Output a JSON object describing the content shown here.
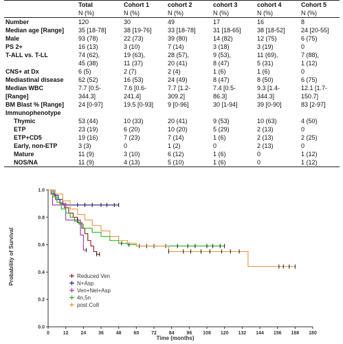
{
  "table": {
    "columns": [
      "",
      "Total",
      "Cohort 1",
      "cohort 2",
      "cohort 3",
      "cohort 4",
      "Cohort 5"
    ],
    "units": [
      "",
      "N (%)",
      "N (%)",
      "N (%)",
      "N (%)",
      "N (%)",
      "N (%)"
    ],
    "rows": [
      {
        "label": "Number",
        "indent": false,
        "cells": [
          "120",
          "30",
          "49",
          "17",
          "16",
          "8"
        ]
      },
      {
        "label": "Median age [Range]",
        "indent": false,
        "cells": [
          "35 [18-78]",
          "38 [19-76]",
          "33 [18-78]",
          "31 [18-65]",
          "38 [18-52]",
          "24 [20-55]"
        ]
      },
      {
        "label": "Male",
        "indent": false,
        "cells": [
          "93 (78)",
          "22 (73)",
          "39 (80)",
          "14 (82)",
          "12 (75)",
          "6 (75)"
        ]
      },
      {
        "label": "PS 2+",
        "indent": false,
        "cells": [
          "16 (13)",
          "3 (10)",
          "7 (14)",
          "3 (18)",
          "3 (19)",
          "0"
        ]
      },
      {
        "label": "T-ALL vs. T-LL",
        "indent": false,
        "cells": [
          "74 (62),",
          "19 (63),",
          "28 (57),",
          "9 (53),",
          "11 (69),",
          "7 (88),"
        ]
      },
      {
        "label": "",
        "indent": false,
        "cells": [
          "45 (38)",
          "11 (37)",
          "20 (41)",
          "8 (47)",
          "5 (31)",
          "1 (12)"
        ]
      },
      {
        "label": "CNS+ at Dx",
        "indent": false,
        "cells": [
          "6 (5)",
          "2 (7)",
          "2 (4)",
          "1 (6)",
          "1 (6)",
          "0"
        ]
      },
      {
        "label": "Mediastinal disease",
        "indent": false,
        "cells": [
          "62 (52)",
          "16 (53)",
          "24 (49)",
          "8 (47)",
          "8 (50)",
          "6 (75)"
        ]
      },
      {
        "label": "Median WBC",
        "indent": false,
        "cells": [
          "7.7 [0.5-",
          "7.6 [0.6-",
          "7.7 [1.2-",
          "7.4 [0.5-",
          "9.3 [1.4-",
          "12.1 [1.7-"
        ]
      },
      {
        "label": "[Range]",
        "indent": false,
        "cells": [
          "344.3]",
          "241.4]",
          "309.2]",
          "86.3]",
          "344.3]",
          "150.7]"
        ]
      },
      {
        "label": "BM Blast % [Range]",
        "indent": false,
        "cells": [
          "24 [0-97]",
          "19.5 [0-93]",
          "9 [0-96]",
          "30 [1-94]",
          "39 [0-90]",
          "83 [2-97]"
        ]
      },
      {
        "label": "Immunophenotype",
        "indent": false,
        "cells": [
          "",
          "",
          "",
          "",
          "",
          ""
        ]
      },
      {
        "label": "Thymic",
        "indent": true,
        "cells": [
          "53 (44)",
          "10 (33)",
          "20 (41)",
          "9 (53)",
          "10 (63)",
          "4 (50)"
        ]
      },
      {
        "label": "ETP",
        "indent": true,
        "cells": [
          "23 (19)",
          "6 (20)",
          "10 (20)",
          "5 (29)",
          "2 (13)",
          "0"
        ]
      },
      {
        "label": "ETP+CD5",
        "indent": true,
        "cells": [
          "19 (16)",
          "7 (23)",
          "7 (14)",
          "1 (6)",
          "2 (13)",
          "2 (25)"
        ]
      },
      {
        "label": "Early, non-ETP",
        "indent": true,
        "cells": [
          "3 (3)",
          "0",
          "1 (2)",
          "0",
          "2 (13)",
          "0"
        ]
      },
      {
        "label": "Mature",
        "indent": true,
        "cells": [
          "11 (9)",
          "3 (10)",
          "6 (12)",
          "1 (6)",
          "0",
          "1 (12)"
        ]
      },
      {
        "label": "NOS/NA",
        "indent": true,
        "cells": [
          "11 (9)",
          "4 (13)",
          "5 (10)",
          "1 (6)",
          "0",
          "1 (12)"
        ]
      }
    ]
  },
  "chart_data": {
    "type": "line",
    "title": "",
    "xlabel": "Time (months)",
    "ylabel": "Probability of Survival",
    "xlim": [
      0,
      180
    ],
    "ylim": [
      0,
      1.0
    ],
    "xticks": [
      "0",
      "12",
      "24",
      "36",
      "48",
      "60",
      "72",
      "84",
      "96",
      "108",
      "120",
      "132",
      "144",
      "156",
      "168",
      "180"
    ],
    "yticks": [
      "0.0",
      "0.2",
      "0.4",
      "0.6",
      "0.8",
      "1.0"
    ],
    "legend_position": "bottom-left",
    "series": [
      {
        "name": "Reduced Ven",
        "color": "#8b1a1a",
        "steps": [
          [
            0,
            1.0
          ],
          [
            2,
            0.97
          ],
          [
            5,
            0.93
          ],
          [
            8,
            0.9
          ],
          [
            11,
            0.87
          ],
          [
            14,
            0.83
          ],
          [
            17,
            0.8
          ],
          [
            20,
            0.76
          ],
          [
            23,
            0.72
          ],
          [
            25,
            0.68
          ],
          [
            27,
            0.63
          ],
          [
            29,
            0.59
          ],
          [
            31,
            0.55
          ],
          [
            33,
            0.53
          ],
          [
            35,
            0.53
          ]
        ],
        "censor": [
          33,
          35
        ]
      },
      {
        "name": "N+Asp",
        "color": "#1a1a9e",
        "steps": [
          [
            0,
            1.0
          ],
          [
            4,
            0.96
          ],
          [
            7,
            0.93
          ],
          [
            10,
            0.89
          ],
          [
            48,
            0.89
          ]
        ],
        "censor": [
          12,
          20,
          25,
          30,
          36,
          40,
          45,
          48
        ]
      },
      {
        "name": "Ven+Nel+Asp",
        "color": "#9b2fae",
        "steps": [
          [
            0,
            1.0
          ],
          [
            3,
            0.89
          ],
          [
            12,
            0.78
          ],
          [
            20,
            0.78
          ],
          [
            22,
            0.67
          ],
          [
            24,
            0.56
          ],
          [
            26,
            0.56
          ]
        ],
        "censor": [
          20,
          26
        ]
      },
      {
        "name": "4n,5n",
        "color": "#22b022",
        "steps": [
          [
            0,
            1.0
          ],
          [
            3,
            0.95
          ],
          [
            6,
            0.91
          ],
          [
            9,
            0.86
          ],
          [
            12,
            0.83
          ],
          [
            15,
            0.8
          ],
          [
            18,
            0.77
          ],
          [
            21,
            0.75
          ],
          [
            24,
            0.72
          ],
          [
            30,
            0.69
          ],
          [
            36,
            0.66
          ],
          [
            42,
            0.63
          ],
          [
            48,
            0.61
          ],
          [
            54,
            0.6
          ],
          [
            60,
            0.59
          ],
          [
            120,
            0.59
          ]
        ],
        "censor": [
          50,
          55,
          62,
          67,
          72,
          80,
          88,
          95,
          100,
          108,
          112,
          117,
          120
        ]
      },
      {
        "name": "post Co8",
        "color": "#e8963a",
        "steps": [
          [
            0,
            1.0
          ],
          [
            5,
            0.97
          ],
          [
            10,
            0.92
          ],
          [
            15,
            0.86
          ],
          [
            20,
            0.82
          ],
          [
            25,
            0.78
          ],
          [
            30,
            0.74
          ],
          [
            36,
            0.7
          ],
          [
            42,
            0.66
          ],
          [
            48,
            0.63
          ],
          [
            54,
            0.61
          ],
          [
            60,
            0.59
          ],
          [
            75,
            0.59
          ],
          [
            82,
            0.55
          ],
          [
            135,
            0.55
          ],
          [
            136,
            0.44
          ],
          [
            168,
            0.44
          ]
        ],
        "censor": [
          82,
          92,
          97,
          104,
          110,
          118,
          124,
          130,
          157,
          160,
          164,
          168
        ]
      }
    ]
  }
}
